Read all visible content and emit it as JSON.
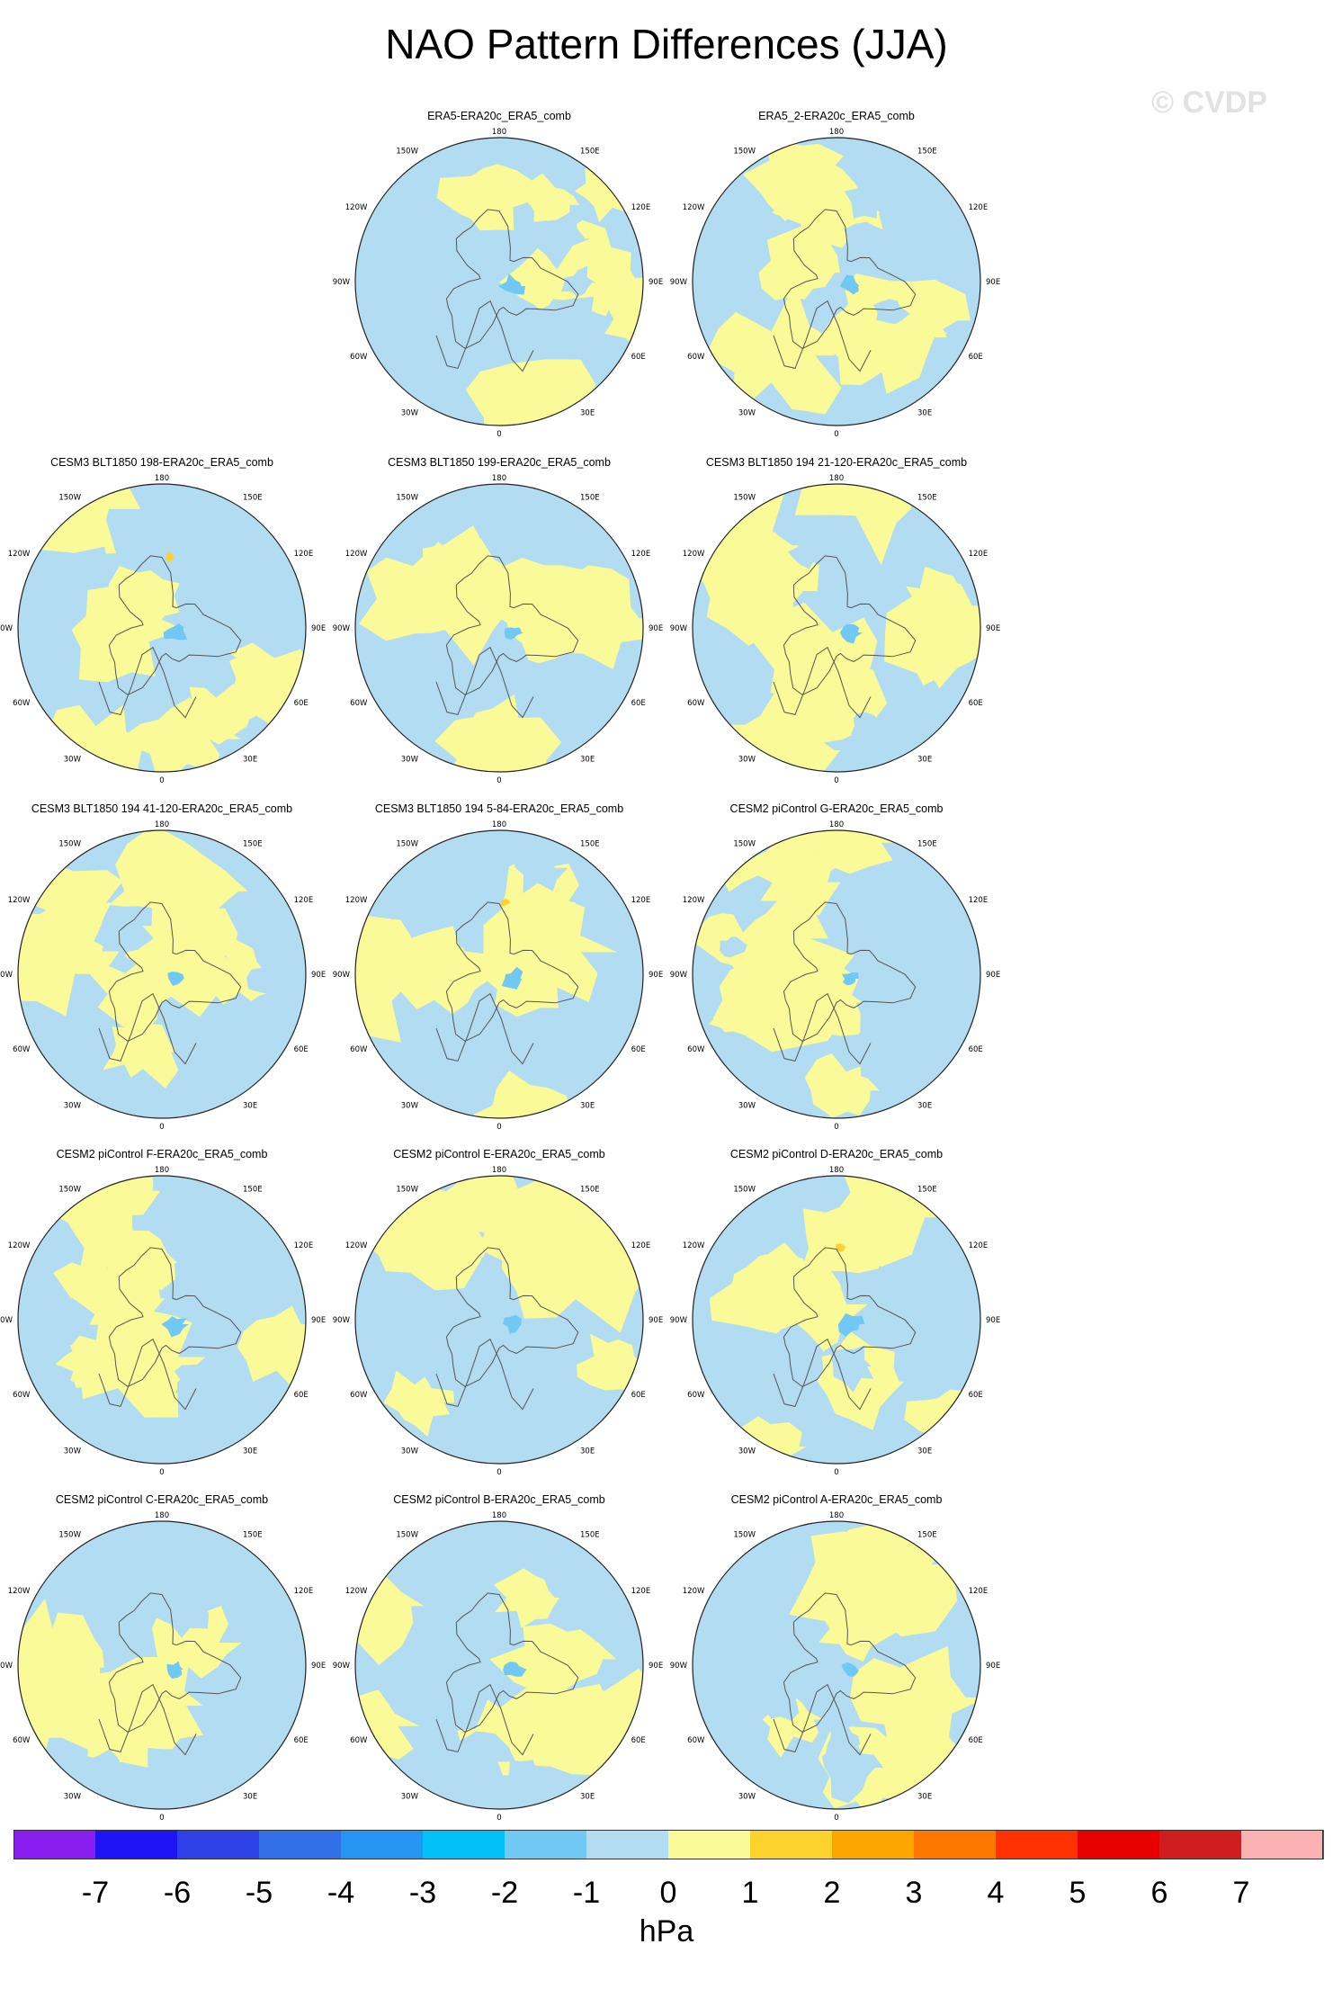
{
  "title": "NAO Pattern Differences (JJA)",
  "watermark": "© CVDP",
  "units": "hPa",
  "panels": [
    {
      "title": "ERA5-ERA20c_ERA5_comb"
    },
    {
      "title": "ERA5_2-ERA20c_ERA5_comb"
    },
    {
      "title": "CESM3 BLT1850 198-ERA20c_ERA5_comb"
    },
    {
      "title": "CESM3 BLT1850 199-ERA20c_ERA5_comb"
    },
    {
      "title": "CESM3 BLT1850 194 21-120-ERA20c_ERA5_comb"
    },
    {
      "title": "CESM3 BLT1850 194 41-120-ERA20c_ERA5_comb"
    },
    {
      "title": "CESM3 BLT1850 194 5-84-ERA20c_ERA5_comb"
    },
    {
      "title": "CESM2 piControl G-ERA20c_ERA5_comb"
    },
    {
      "title": "CESM2 piControl F-ERA20c_ERA5_comb"
    },
    {
      "title": "CESM2 piControl E-ERA20c_ERA5_comb"
    },
    {
      "title": "CESM2 piControl D-ERA20c_ERA5_comb"
    },
    {
      "title": "CESM2 piControl C-ERA20c_ERA5_comb"
    },
    {
      "title": "CESM2 piControl B-ERA20c_ERA5_comb"
    },
    {
      "title": "CESM2 piControl A-ERA20c_ERA5_comb"
    }
  ],
  "lon_labels": {
    "top": "180",
    "bottom": "0",
    "left": "90W",
    "right": "90E",
    "ul_150": "150W",
    "ur_150": "150E",
    "ul_120": "120W",
    "ur_120": "120E",
    "ll_60": "60W",
    "lr_60": "60E",
    "ll_30": "30W",
    "lr_30": "30E"
  },
  "colorbar": {
    "labels": [
      "-7",
      "-6",
      "-5",
      "-4",
      "-3",
      "-2",
      "-1",
      "0",
      "1",
      "2",
      "3",
      "4",
      "5",
      "6",
      "7"
    ],
    "colors": [
      "#8a1ef0",
      "#1e14f5",
      "#2e40e8",
      "#3270e8",
      "#2496f2",
      "#00c0f8",
      "#70c8f4",
      "#b2dcf2",
      "#fafa98",
      "#fed22c",
      "#fea600",
      "#fe7800",
      "#fe3200",
      "#e80000",
      "#d01e1e",
      "#fcb2b2"
    ]
  },
  "map_colors": {
    "neg1": "#b2dcf2",
    "pos1": "#fafa98",
    "neg2": "#70c8f4",
    "pos2": "#fed22c",
    "coast": "#555555"
  }
}
